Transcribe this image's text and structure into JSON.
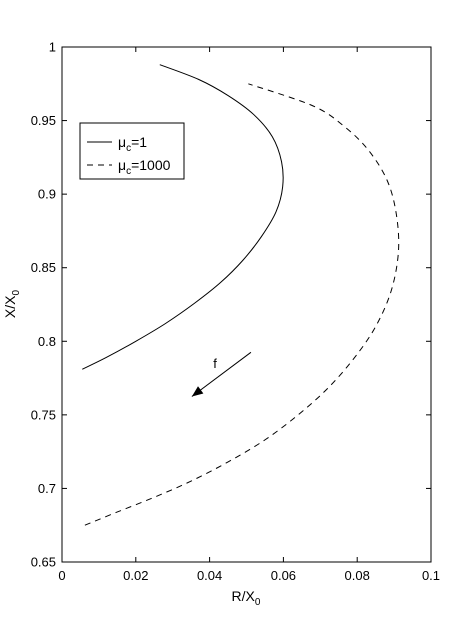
{
  "chart_data": {
    "type": "line",
    "title": "",
    "xlabel": "R/X",
    "xlabel_sub": "0",
    "ylabel": "X/X",
    "ylabel_sub": "0",
    "xlim": [
      0,
      0.1
    ],
    "ylim": [
      0.65,
      1
    ],
    "xticks": [
      0,
      0.02,
      0.04,
      0.06,
      0.08,
      0.1
    ],
    "xtick_labels": [
      "0",
      "0.02",
      "0.04",
      "0.06",
      "0.08",
      "0.1"
    ],
    "yticks": [
      0.65,
      0.7,
      0.75,
      0.8,
      0.85,
      0.9,
      0.95,
      1
    ],
    "ytick_labels": [
      "0.65",
      "0.7",
      "0.75",
      "0.8",
      "0.85",
      "0.9",
      "0.95",
      "1"
    ],
    "grid": false,
    "legend_position": "top-left",
    "series": [
      {
        "name": "μc=1",
        "legend_main": "μ",
        "legend_sub": "c",
        "legend_rest": "=1",
        "style": "solid",
        "x": [
          0.0055,
          0.012,
          0.02,
          0.028,
          0.036,
          0.043,
          0.049,
          0.054,
          0.058,
          0.0598,
          0.0595,
          0.057,
          0.052,
          0.045,
          0.037,
          0.0265
        ],
        "y": [
          0.781,
          0.789,
          0.8,
          0.812,
          0.826,
          0.84,
          0.855,
          0.871,
          0.888,
          0.905,
          0.922,
          0.939,
          0.954,
          0.967,
          0.978,
          0.988
        ]
      },
      {
        "name": "μc=1000",
        "legend_main": "μ",
        "legend_sub": "c",
        "legend_rest": "=1000",
        "style": "dashed",
        "x": [
          0.0062,
          0.015,
          0.025,
          0.035,
          0.045,
          0.055,
          0.064,
          0.072,
          0.079,
          0.085,
          0.0893,
          0.0912,
          0.0905,
          0.088,
          0.083,
          0.0765,
          0.068,
          0.0505
        ],
        "y": [
          0.675,
          0.684,
          0.694,
          0.705,
          0.718,
          0.733,
          0.75,
          0.768,
          0.788,
          0.81,
          0.835,
          0.862,
          0.888,
          0.91,
          0.93,
          0.946,
          0.96,
          0.975
        ]
      }
    ],
    "annotations": [
      {
        "text": "f",
        "x": 0.041,
        "y": 0.782,
        "arrow_from": [
          0.0512,
          0.7925
        ],
        "arrow_to": [
          0.0352,
          0.7625
        ]
      }
    ]
  }
}
